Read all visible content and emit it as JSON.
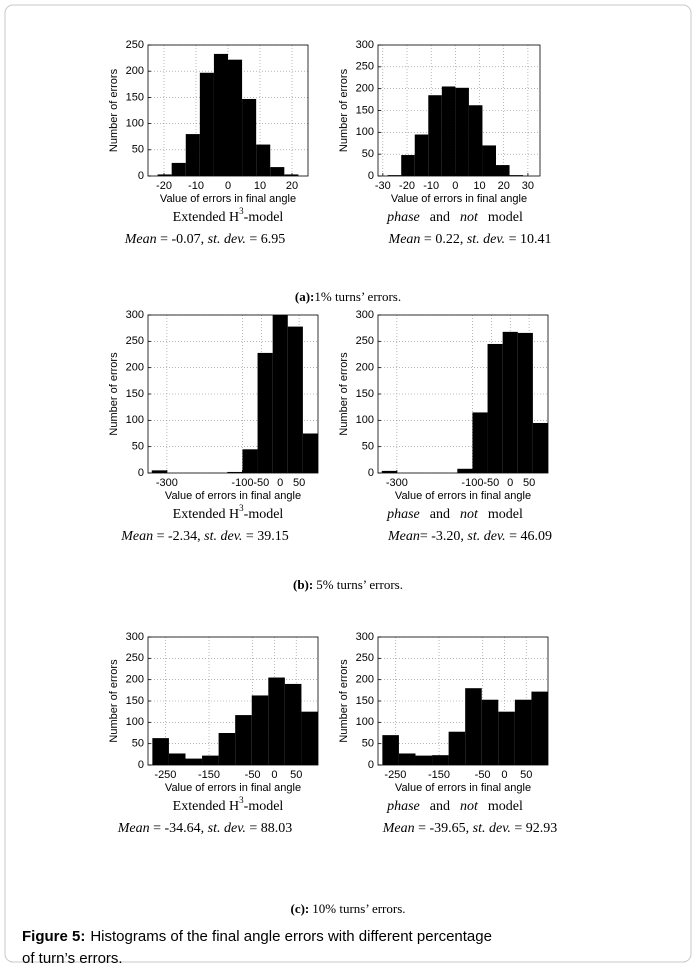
{
  "chart_data": [
    {
      "type": "histogram",
      "xlabel": "Value of errors in final angle",
      "ylabel": "Number of errors",
      "bins": [
        -22,
        -17.6,
        -13.2,
        -8.8,
        -4.4,
        0,
        4.4,
        8.8,
        13.2,
        17.6,
        22
      ],
      "values": [
        3,
        25,
        80,
        197,
        233,
        222,
        147,
        60,
        17,
        3
      ],
      "color": "#000000",
      "xlim": [
        -25,
        25
      ],
      "xticks": [
        -20,
        -10,
        0,
        10,
        20
      ],
      "ylim": [
        0,
        250
      ],
      "yticks": [
        0,
        50,
        100,
        150,
        200,
        250
      ],
      "grid": true,
      "model_label": [
        "Extended H",
        "3",
        "-model"
      ],
      "stats": [
        "Mean",
        " = -0.07, ",
        "st. dev.",
        " = 6.95"
      ]
    },
    {
      "type": "histogram",
      "xlabel": "Value of errors in final angle",
      "ylabel": "Number of errors",
      "bins": [
        -28,
        -22.4,
        -16.8,
        -11.2,
        -5.6,
        0,
        5.6,
        11.2,
        16.8,
        22.4,
        28
      ],
      "values": [
        2,
        48,
        95,
        185,
        205,
        202,
        162,
        70,
        25,
        2
      ],
      "color": "#000000",
      "xlim": [
        -32,
        35
      ],
      "xticks": [
        -30,
        -20,
        -10,
        0,
        10,
        20,
        30
      ],
      "ylim": [
        0,
        300
      ],
      "yticks": [
        0,
        50,
        100,
        150,
        200,
        250,
        300
      ],
      "grid": true,
      "model_label": [
        "phase",
        "and",
        "not",
        "model"
      ],
      "stats": [
        "Mean",
        " = 0.22, ",
        "st. dev.",
        " = 10.41"
      ]
    },
    {
      "type": "histogram",
      "xlabel": "Value of errors in final angle",
      "ylabel": "Number of errors",
      "bins": [
        -340,
        -300,
        -260,
        -220,
        -180,
        -140,
        -100,
        -60,
        -20,
        20,
        60,
        100
      ],
      "values": [
        5,
        0,
        0,
        0,
        0,
        2,
        45,
        228,
        300,
        278,
        75
      ],
      "color": "#000000",
      "xlim": [
        -350,
        100
      ],
      "xticks": [
        -300,
        -100,
        -50,
        0,
        50
      ],
      "ylim": [
        0,
        300
      ],
      "yticks": [
        0,
        50,
        100,
        150,
        200,
        250,
        300
      ],
      "grid": true,
      "model_label": [
        "Extended H",
        "3",
        "-model"
      ],
      "stats": [
        "Mean",
        " = -2.34, ",
        "st. dev.",
        " = 39.15"
      ]
    },
    {
      "type": "histogram",
      "xlabel": "Value of errors in final angle",
      "ylabel": "Number of errors",
      "bins": [
        -340,
        -300,
        -260,
        -220,
        -180,
        -140,
        -100,
        -60,
        -20,
        20,
        60,
        100
      ],
      "values": [
        4,
        0,
        0,
        0,
        0,
        8,
        115,
        245,
        268,
        266,
        95
      ],
      "color": "#000000",
      "xlim": [
        -350,
        100
      ],
      "xticks": [
        -300,
        -100,
        -50,
        0,
        50
      ],
      "ylim": [
        0,
        300
      ],
      "yticks": [
        0,
        50,
        100,
        150,
        200,
        250,
        300
      ],
      "grid": true,
      "model_label": [
        "phase",
        "and",
        "not",
        "model"
      ],
      "stats": [
        "Mean",
        "= -3.20, ",
        "st. dev.",
        " = 46.09"
      ]
    },
    {
      "type": "histogram",
      "xlabel": "Value of errors in final angle",
      "ylabel": "Number of errors",
      "bins": [
        -280,
        -242,
        -204,
        -166,
        -128,
        -90,
        -52,
        -14,
        24,
        62,
        100
      ],
      "values": [
        63,
        27,
        15,
        22,
        75,
        117,
        163,
        205,
        190,
        125
      ],
      "color": "#000000",
      "xlim": [
        -290,
        100
      ],
      "xticks": [
        -250,
        -150,
        -50,
        0,
        50
      ],
      "ylim": [
        0,
        300
      ],
      "yticks": [
        0,
        50,
        100,
        150,
        200,
        250,
        300
      ],
      "grid": true,
      "model_label": [
        "Extended H",
        "3",
        "-model"
      ],
      "stats": [
        "Mean",
        " = -34.64, ",
        "st. dev.",
        " = 88.03"
      ]
    },
    {
      "type": "histogram",
      "xlabel": "Value of errors in final angle",
      "ylabel": "Number of errors",
      "bins": [
        -280,
        -242,
        -204,
        -166,
        -128,
        -90,
        -52,
        -14,
        24,
        62,
        100
      ],
      "values": [
        70,
        27,
        22,
        23,
        78,
        180,
        153,
        125,
        153,
        172
      ],
      "color": "#000000",
      "xlim": [
        -290,
        100
      ],
      "xticks": [
        -250,
        -150,
        -50,
        0,
        50
      ],
      "ylim": [
        0,
        300
      ],
      "yticks": [
        0,
        50,
        100,
        150,
        200,
        250,
        300
      ],
      "grid": true,
      "model_label": [
        "phase",
        "and",
        "not",
        "model"
      ],
      "stats": [
        "Mean",
        " = -39.65, ",
        "st. dev.",
        " = 92.93"
      ]
    }
  ],
  "panel_captions": [
    [
      "(a):",
      "1% turns’ errors."
    ],
    [
      "(b):",
      "5% turns’ errors."
    ],
    [
      "(c):",
      "10% turns’ errors."
    ]
  ],
  "figure_caption": {
    "label": "Figure 5:",
    "lines": [
      "Histograms of the final angle errors with different percentage",
      "of turn’s errors."
    ]
  }
}
